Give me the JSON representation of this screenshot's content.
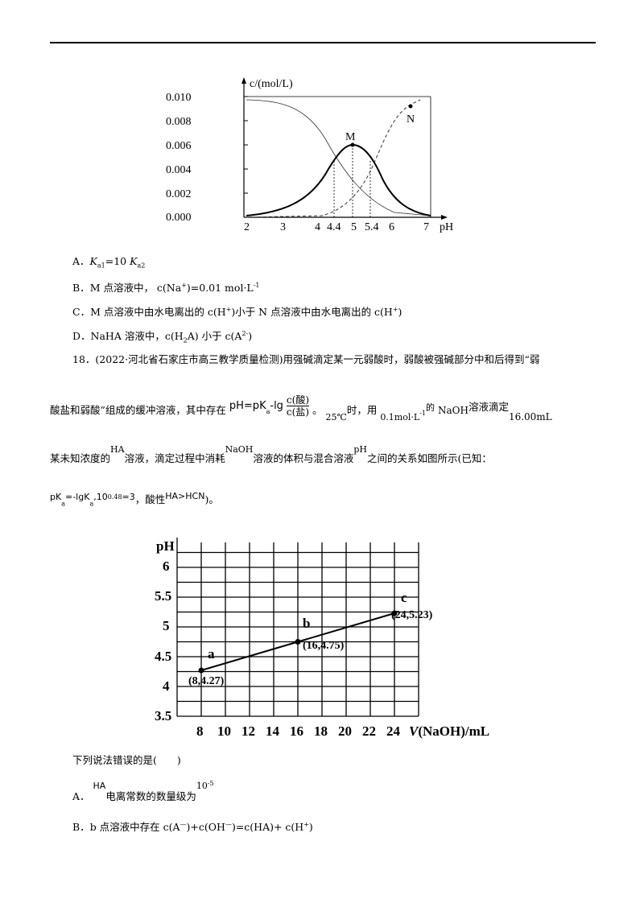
{
  "chart1": {
    "type": "line",
    "ylabel": "c/(mol/L)",
    "xlabel": "pH",
    "y_ticks": [
      "0.010",
      "0.008",
      "0.006",
      "0.004",
      "0.002",
      "0.000"
    ],
    "x_ticks": [
      "2",
      "3",
      "4",
      "4.4",
      "5",
      "5.4",
      "6",
      "7"
    ],
    "point_M": "M",
    "point_N": "N"
  },
  "options17": [
    {
      "letter": "A．",
      "a": "K",
      "a_sub": "a1",
      "b": "=10  ",
      "c": "K",
      "c_sub": "a2"
    },
    {
      "letter": "B．",
      "text": "M 点溶液中，  c(Na",
      "sup": "+",
      "tail": ")=0.01 mol·L",
      "sup2": "-1"
    },
    {
      "letter": "C．",
      "text": "M 点溶液中由水电离出的 c(H",
      "sup": "+",
      "mid": ")小于 N 点溶液中由水电离出的 c(H",
      "sup2": "+",
      "tail": ")"
    },
    {
      "letter": "D．",
      "text": "NaHA 溶液中，c(H",
      "sub": "2",
      "mid": "A)  小于 c(A",
      "sup": "2-",
      "tail": ")"
    }
  ],
  "q18": {
    "line1": "18．(2022·河北省石家庄市高三教学质量检测)用强碱滴定某一元弱酸时，弱酸被强碱部分中和后得到“弱",
    "line2a": "酸盐和弱酸”组成的缓冲溶液，其中存在",
    "formula_lhs": "pH=pK",
    "formula_sub": "a",
    "formula_mid": "-lg",
    "frac_num": "c(酸)",
    "frac_den": "c(盐)",
    "line2b": "。",
    "temp": "25℃",
    "line2c": "时，用",
    "conc": "0.1mol·L",
    "conc_sup": "-1",
    "line2d": "的",
    "naoh": "NaOH",
    "line2e": "溶液滴定",
    "vol": "16.00mL",
    "line3a": "某未知浓度的",
    "ha": "HA",
    "line3b": "溶液，滴定过程中消耗",
    "naoh2": "NaOH",
    "line3c": "溶液的体积与混合溶液",
    "ph": "pH",
    "line3d": "之间的关系如图所示(已知：",
    "line4a": "pK",
    "line4a_sub": "a",
    "line4b": "=-lgK",
    "line4b_sub": "a",
    "line4c": ",10",
    "line4c_sup": "0.48",
    "line4d": "=3",
    "line4e": "，酸性",
    "line4f": "HA>HCN",
    "line4g": ")。"
  },
  "chart2": {
    "type": "line",
    "ylabel": "pH",
    "xlabel": "V(NaOH)/mL",
    "xlabel_italic": "V",
    "xlabel_rest": "(NaOH)/mL",
    "x": [
      8,
      16,
      24
    ],
    "y": [
      4.27,
      4.75,
      5.23
    ],
    "point_labels": [
      "a",
      "b",
      "c"
    ],
    "point_coords": [
      "(8,4.27)",
      "(16,4.75)",
      "(24,5.23)"
    ],
    "y_ticks": [
      "6",
      "5.5",
      "5",
      "4.5",
      "4",
      "3.5"
    ],
    "x_ticks": [
      "8",
      "10",
      "12",
      "14",
      "16",
      "18",
      "20",
      "22",
      "24"
    ]
  },
  "q18_stem": "下列说法错误的是(　　)",
  "options18": [
    {
      "letter": "A．",
      "ha": "HA",
      "text": "电离常数的数量级为",
      "pow": "10",
      "pow_sup": "-5"
    },
    {
      "letter": "B．",
      "text": "b 点溶液中存在 c(A",
      "s1": "—",
      "t2": ")+c(OH",
      "s2": "—",
      "t3": ")=c(HA)+  c(H",
      "s3": "+",
      "t4": ")"
    }
  ]
}
